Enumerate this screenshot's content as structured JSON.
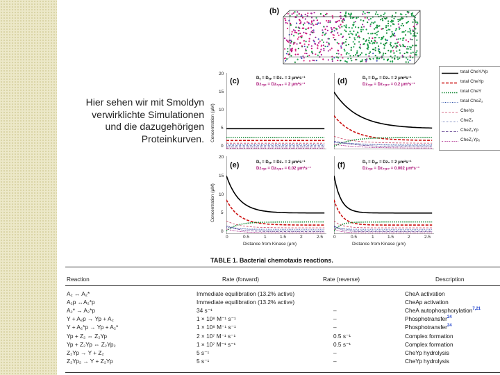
{
  "caption": {
    "lines": [
      "Hier sehen wir mit Smoldyn",
      "verwirklichte Simulationen",
      "und die dazugehörigen",
      "Proteinkurven."
    ]
  },
  "figure": {
    "panel_b_label": "(b)",
    "panels": [
      {
        "label": "(c)",
        "eq1": "Dᵧ = Dᵧₚ = Dᴢ₂ = 2 μm²s⁻¹",
        "eq2": "Dᴢ₂ᵧₚ = Dᴢ₂ᵧₚ₂ = 2 μm²s⁻¹"
      },
      {
        "label": "(d)",
        "eq1": "Dᵧ = Dᵧₚ = Dᴢ₂ = 2 μm²s⁻¹",
        "eq2": "Dᴢ₂ᵧₚ = Dᴢ₂ᵧₚ₂ = 0.2 μm²s⁻¹"
      },
      {
        "label": "(e)",
        "eq1": "Dᵧ = Dᵧₚ = Dᴢ₂ = 2 μm²s⁻¹",
        "eq2": "Dᴢ₂ᵧₚ = Dᴢ₂ᵧₚ₂ = 0.02 μm²s⁻¹"
      },
      {
        "label": "(f)",
        "eq1": "Dᵧ = Dᵧₚ = Dᴢ₂ = 2 μm²s⁻¹",
        "eq2": "Dᴢ₂ᵧₚ = Dᴢ₂ᵧₚ₂ = 0.002 μm²s⁻¹"
      }
    ],
    "ylabel": "Concentration (μM)",
    "xlabel": "Distance from Kinase (μm)",
    "yticks": [
      "20",
      "15",
      "10",
      "5",
      "0"
    ],
    "xticks": [
      "0",
      "0.5",
      "1",
      "1.5",
      "2",
      "2.5"
    ],
    "legend": [
      {
        "label": "total CheY/Yp",
        "color": "#000000",
        "dash": "",
        "width": 1.6
      },
      {
        "label": "total CheYp",
        "color": "#cc1111",
        "dash": "4,2",
        "width": 1.6
      },
      {
        "label": "total CheY",
        "color": "#118833",
        "dash": "1.5,1.5",
        "width": 1.6
      },
      {
        "label": "total CheZ₂",
        "color": "#3355aa",
        "dash": "1,1.5",
        "width": 1
      },
      {
        "label": "CheYp",
        "color": "#cc4466",
        "dash": "3,2",
        "width": 0.8
      },
      {
        "label": "CheZ₂",
        "color": "#5566aa",
        "dash": "1,1",
        "width": 0.8
      },
      {
        "label": "CheZ₂Yp",
        "color": "#553388",
        "dash": "3,1,1,1",
        "width": 0.8
      },
      {
        "label": "CheZ₂Yp₂",
        "color": "#aa2288",
        "dash": "2,1,1,1",
        "width": 0.8
      }
    ]
  },
  "table": {
    "title": "TABLE 1.   Bacterial chemotaxis reactions.",
    "headers": {
      "reaction": "Reaction",
      "rate_forward": "Rate (forward)",
      "rate_reverse": "Rate (reverse)",
      "description": "Description"
    },
    "rows": [
      {
        "reaction": "A₂ ↔ A₂*",
        "forward": "Immediate equilibration (13.2% active)",
        "reverse": "",
        "description": "CheA activation"
      },
      {
        "reaction": "A₂p ↔A₂*p",
        "forward": "Immediate equilibration (13.2% active)",
        "reverse": "",
        "description": "CheAp activation"
      },
      {
        "reaction": "A₂*  →  A₂*p",
        "forward": "34 s⁻¹",
        "reverse": "–",
        "description": "CheA autophosphorylation",
        "ref": "7,21"
      },
      {
        "reaction": "Y + A₂p  →  Yp + A₂",
        "forward": "1 × 10⁸ M⁻¹ s⁻¹",
        "reverse": "–",
        "description": "Phosphotransfer",
        "ref": "24"
      },
      {
        "reaction": "Y + A₂*p  →  Yp + A₂*",
        "forward": "1 × 10⁸ M⁻¹ s⁻¹",
        "reverse": "–",
        "description": "Phosphotransfer",
        "ref": "24"
      },
      {
        "reaction": "Yp + Z₂ ⇔ Z₂Yp",
        "forward": "2 × 10⁷ M⁻¹ s⁻¹",
        "reverse": "0.5 s⁻¹",
        "description": "Complex formation"
      },
      {
        "reaction": "Yp + Z₂Yp ⇔ Z₂Yp₂",
        "forward": "1 × 10⁷ M⁻¹ s⁻¹",
        "reverse": "0.5 s⁻¹",
        "description": "Complex formation"
      },
      {
        "reaction": "Z₂Yp  →  Y + Z₂",
        "forward": "5 s⁻¹",
        "reverse": "–",
        "description": "CheYp hydrolysis"
      },
      {
        "reaction": "Z₂Yp₂  →  Y + Z₂Yp",
        "forward": "5 s⁻¹",
        "reverse": "–",
        "description": "CheYp hydrolysis"
      }
    ]
  },
  "colors": {
    "sidebar": "#ece8c8",
    "ref_blue": "#2244cc",
    "eq_magenta": "#aa1177"
  }
}
